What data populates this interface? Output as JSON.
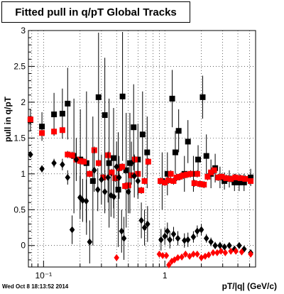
{
  "chart_data": {
    "type": "scatter",
    "title": "Fitted pull in q/pT  Global Tracks",
    "xlabel": "pT/|q| (GeV/c)",
    "ylabel": "pull in q/pT",
    "x_scale": "log",
    "xlim": [
      0.075,
      5.6
    ],
    "ylim": [
      -0.3,
      3.0
    ],
    "x_ticks": [
      {
        "value": 0.1,
        "label": "10⁻¹"
      },
      {
        "value": 1,
        "label": "1"
      }
    ],
    "y_ticks": [
      {
        "value": 0,
        "label": "0"
      },
      {
        "value": 0.5,
        "label": "0.5"
      },
      {
        "value": 1,
        "label": "1"
      },
      {
        "value": 1.5,
        "label": "1.5"
      },
      {
        "value": 2,
        "label": "2"
      },
      {
        "value": 2.5,
        "label": "2.5"
      },
      {
        "value": 3,
        "label": "3"
      }
    ],
    "grid": true,
    "series": [
      {
        "marker": "square",
        "color": "#000000",
        "points": [
          {
            "x": 0.078,
            "y": 1.75,
            "err": 0.15
          },
          {
            "x": 0.097,
            "y": 1.66,
            "err": 0.2
          },
          {
            "x": 0.122,
            "y": 1.83,
            "err": 0.3
          },
          {
            "x": 0.143,
            "y": 1.84,
            "err": 0.35
          },
          {
            "x": 0.158,
            "y": 1.98,
            "err": 0.5
          },
          {
            "x": 0.178,
            "y": 1.25,
            "err": 0.8
          },
          {
            "x": 0.201,
            "y": 1.2,
            "err": 0.7
          },
          {
            "x": 0.226,
            "y": 1.15,
            "err": 1.0
          },
          {
            "x": 0.255,
            "y": 0.9,
            "err": 0.9
          },
          {
            "x": 0.284,
            "y": 2.07,
            "err": 0.9
          },
          {
            "x": 0.32,
            "y": 1.82,
            "err": 0.8
          },
          {
            "x": 0.347,
            "y": 1.15,
            "err": 0.9
          },
          {
            "x": 0.378,
            "y": 1.22,
            "err": 0.7
          },
          {
            "x": 0.413,
            "y": 0.78,
            "err": 0.8
          },
          {
            "x": 0.448,
            "y": 2.08,
            "err": 0.9
          },
          {
            "x": 0.48,
            "y": 1.05,
            "err": 0.8
          },
          {
            "x": 0.515,
            "y": 1.15,
            "err": 0.7
          },
          {
            "x": 0.553,
            "y": 1.65,
            "err": 0.6
          },
          {
            "x": 0.6,
            "y": 1.2,
            "err": 0.5
          },
          {
            "x": 0.655,
            "y": 1.55,
            "err": 0.6
          },
          {
            "x": 0.715,
            "y": 1.3,
            "err": 0.5
          },
          {
            "x": 0.95,
            "y": 0.9,
            "err": 0.4
          },
          {
            "x": 1.05,
            "y": 1.0,
            "err": 0.3
          },
          {
            "x": 1.15,
            "y": 2.05,
            "err": 0.4
          },
          {
            "x": 1.22,
            "y": 1.3,
            "err": 0.3
          },
          {
            "x": 1.3,
            "y": 1.6,
            "err": 0.3
          },
          {
            "x": 1.45,
            "y": 1.0,
            "err": 0.25
          },
          {
            "x": 1.55,
            "y": 1.45,
            "err": 0.3
          },
          {
            "x": 1.72,
            "y": 1.0,
            "err": 0.25
          },
          {
            "x": 1.88,
            "y": 1.2,
            "err": 0.2
          },
          {
            "x": 2.05,
            "y": 2.07,
            "err": 0.3
          },
          {
            "x": 2.2,
            "y": 1.25,
            "err": 0.3
          },
          {
            "x": 2.4,
            "y": 1.0,
            "err": 0.2
          },
          {
            "x": 2.6,
            "y": 1.08,
            "err": 0.2
          },
          {
            "x": 2.85,
            "y": 0.95,
            "err": 0.15
          },
          {
            "x": 3.1,
            "y": 0.9,
            "err": 0.12
          },
          {
            "x": 3.4,
            "y": 0.93,
            "err": 0.12
          },
          {
            "x": 3.75,
            "y": 0.88,
            "err": 0.12
          },
          {
            "x": 4.1,
            "y": 0.88,
            "err": 0.12
          },
          {
            "x": 4.5,
            "y": 0.88,
            "err": 0.12
          },
          {
            "x": 5.1,
            "y": 0.95,
            "err": 0.12
          }
        ]
      },
      {
        "marker": "square",
        "color": "#ff0000",
        "points": [
          {
            "x": 0.078,
            "y": 1.76,
            "err": 0.05
          },
          {
            "x": 0.097,
            "y": 1.57,
            "err": 0.05
          },
          {
            "x": 0.122,
            "y": 1.59,
            "err": 0.05
          },
          {
            "x": 0.143,
            "y": 1.61,
            "err": 0.05
          },
          {
            "x": 0.158,
            "y": 1.27,
            "err": 0.05
          },
          {
            "x": 0.172,
            "y": 1.26,
            "err": 0.05
          },
          {
            "x": 0.186,
            "y": 1.2,
            "err": 0.05
          },
          {
            "x": 0.2,
            "y": 1.18,
            "err": 0.05
          },
          {
            "x": 0.215,
            "y": 1.17,
            "err": 0.05
          },
          {
            "x": 0.24,
            "y": 1.0,
            "err": 0.05
          },
          {
            "x": 0.262,
            "y": 1.33,
            "err": 0.05
          },
          {
            "x": 0.285,
            "y": 1.15,
            "err": 0.05
          },
          {
            "x": 0.31,
            "y": 0.95,
            "err": 0.05
          },
          {
            "x": 0.34,
            "y": 1.26,
            "err": 0.05
          },
          {
            "x": 0.365,
            "y": 1.02,
            "err": 0.05
          },
          {
            "x": 0.39,
            "y": 0.94,
            "err": 0.05
          },
          {
            "x": 0.42,
            "y": 1.08,
            "err": 0.05
          },
          {
            "x": 0.445,
            "y": 1.1,
            "err": 0.05
          },
          {
            "x": 0.47,
            "y": 0.83,
            "err": 0.05
          },
          {
            "x": 0.5,
            "y": 0.84,
            "err": 0.05
          },
          {
            "x": 0.53,
            "y": 0.98,
            "err": 0.05
          },
          {
            "x": 0.565,
            "y": 1.2,
            "err": 0.05
          },
          {
            "x": 0.6,
            "y": 1.0,
            "err": 0.05
          },
          {
            "x": 0.64,
            "y": 0.77,
            "err": 0.05
          },
          {
            "x": 0.68,
            "y": 0.9,
            "err": 0.05
          },
          {
            "x": 0.73,
            "y": 1.17,
            "err": 0.05
          },
          {
            "x": 0.92,
            "y": 0.9,
            "err": 0.05
          },
          {
            "x": 1.0,
            "y": 0.88,
            "err": 0.05
          },
          {
            "x": 1.07,
            "y": 0.91,
            "err": 0.05
          },
          {
            "x": 1.12,
            "y": 1.0,
            "err": 0.05
          },
          {
            "x": 1.18,
            "y": 0.9,
            "err": 0.05
          },
          {
            "x": 1.25,
            "y": 0.95,
            "err": 0.05
          },
          {
            "x": 1.33,
            "y": 0.96,
            "err": 0.05
          },
          {
            "x": 1.42,
            "y": 0.98,
            "err": 0.05
          },
          {
            "x": 1.52,
            "y": 0.99,
            "err": 0.05
          },
          {
            "x": 1.63,
            "y": 1.0,
            "err": 0.05
          },
          {
            "x": 1.75,
            "y": 0.87,
            "err": 0.05
          },
          {
            "x": 1.85,
            "y": 1.0,
            "err": 0.05
          },
          {
            "x": 1.95,
            "y": 0.86,
            "err": 0.05
          },
          {
            "x": 2.1,
            "y": 0.85,
            "err": 0.05
          },
          {
            "x": 2.25,
            "y": 0.96,
            "err": 0.05
          },
          {
            "x": 2.4,
            "y": 1.02,
            "err": 0.05
          },
          {
            "x": 2.55,
            "y": 1.05,
            "err": 0.05
          },
          {
            "x": 2.75,
            "y": 0.95,
            "err": 0.05
          },
          {
            "x": 2.95,
            "y": 0.96,
            "err": 0.05
          },
          {
            "x": 3.2,
            "y": 0.94,
            "err": 0.05
          },
          {
            "x": 3.5,
            "y": 0.93,
            "err": 0.05
          },
          {
            "x": 3.8,
            "y": 0.95,
            "err": 0.05
          },
          {
            "x": 4.2,
            "y": 0.94,
            "err": 0.05
          },
          {
            "x": 4.6,
            "y": 0.93,
            "err": 0.05
          },
          {
            "x": 5.1,
            "y": 0.9,
            "err": 0.05
          }
        ]
      },
      {
        "marker": "diamond",
        "color": "#000000",
        "points": [
          {
            "x": 0.078,
            "y": 1.27,
            "err": 0.04
          },
          {
            "x": 0.097,
            "y": 1.07,
            "err": 0.05
          },
          {
            "x": 0.122,
            "y": 1.15,
            "err": 0.06
          },
          {
            "x": 0.143,
            "y": 1.13,
            "err": 0.08
          },
          {
            "x": 0.158,
            "y": 0.95,
            "err": 0.1
          },
          {
            "x": 0.172,
            "y": 0.22,
            "err": 0.2
          },
          {
            "x": 0.186,
            "y": 1.2,
            "err": 0.3
          },
          {
            "x": 0.2,
            "y": 0.67,
            "err": 0.3
          },
          {
            "x": 0.21,
            "y": 0.63,
            "err": 0.3
          },
          {
            "x": 0.225,
            "y": 0.62,
            "err": 0.3
          },
          {
            "x": 0.24,
            "y": 0.05,
            "err": 0.3
          },
          {
            "x": 0.262,
            "y": 1.05,
            "err": 0.3
          },
          {
            "x": 0.28,
            "y": 0.78,
            "err": 0.3
          },
          {
            "x": 0.3,
            "y": 0.92,
            "err": 0.35
          },
          {
            "x": 0.32,
            "y": 0.75,
            "err": 0.3
          },
          {
            "x": 0.34,
            "y": 0.95,
            "err": 0.35
          },
          {
            "x": 0.36,
            "y": 0.7,
            "err": 0.3
          },
          {
            "x": 0.38,
            "y": 0.68,
            "err": 0.3
          },
          {
            "x": 0.4,
            "y": 1.1,
            "err": 0.35
          },
          {
            "x": 0.42,
            "y": 0.95,
            "err": 0.3
          },
          {
            "x": 0.44,
            "y": 0.2,
            "err": 0.3
          },
          {
            "x": 0.46,
            "y": 0.1,
            "err": 0.3
          },
          {
            "x": 0.5,
            "y": 0.75,
            "err": 0.3
          },
          {
            "x": 0.53,
            "y": 1.15,
            "err": 0.3
          },
          {
            "x": 0.56,
            "y": 0.97,
            "err": 0.3
          },
          {
            "x": 0.6,
            "y": 0.9,
            "err": 0.25
          },
          {
            "x": 0.64,
            "y": 0.35,
            "err": 0.25
          },
          {
            "x": 0.68,
            "y": 0.25,
            "err": 0.25
          },
          {
            "x": 0.72,
            "y": 0.3,
            "err": 0.25
          },
          {
            "x": 0.93,
            "y": 0.08,
            "err": 0.15
          },
          {
            "x": 1.0,
            "y": 0.13,
            "err": 0.12
          },
          {
            "x": 1.05,
            "y": 0.2,
            "err": 0.12
          },
          {
            "x": 1.1,
            "y": 0.08,
            "err": 0.12
          },
          {
            "x": 1.18,
            "y": 0.16,
            "err": 0.1
          },
          {
            "x": 1.28,
            "y": 0.1,
            "err": 0.1
          },
          {
            "x": 1.45,
            "y": 0.07,
            "err": 0.1
          },
          {
            "x": 1.55,
            "y": 0.08,
            "err": 0.1
          },
          {
            "x": 1.72,
            "y": 0.12,
            "err": 0.08
          },
          {
            "x": 1.85,
            "y": 0.2,
            "err": 0.08
          },
          {
            "x": 2.0,
            "y": 0.22,
            "err": 0.08
          },
          {
            "x": 2.2,
            "y": 0.1,
            "err": 0.06
          },
          {
            "x": 2.4,
            "y": 0.05,
            "err": 0.06
          },
          {
            "x": 2.6,
            "y": 0.0,
            "err": 0.05
          },
          {
            "x": 2.85,
            "y": 0.0,
            "err": 0.05
          },
          {
            "x": 3.1,
            "y": -0.02,
            "err": 0.04
          },
          {
            "x": 3.4,
            "y": 0.0,
            "err": 0.04
          },
          {
            "x": 3.75,
            "y": -0.05,
            "err": 0.04
          },
          {
            "x": 4.1,
            "y": 0.0,
            "err": 0.04
          },
          {
            "x": 4.5,
            "y": -0.05,
            "err": 0.04
          },
          {
            "x": 5.1,
            "y": -0.1,
            "err": 0.04
          }
        ]
      },
      {
        "marker": "diamond",
        "color": "#ff0000",
        "points": [
          {
            "x": 0.4,
            "y": -0.17,
            "err": 0.04
          },
          {
            "x": 0.9,
            "y": -0.12,
            "err": 0.04
          },
          {
            "x": 0.96,
            "y": -0.14,
            "err": 0.04
          },
          {
            "x": 1.03,
            "y": -0.14,
            "err": 0.04
          },
          {
            "x": 1.08,
            "y": -0.27,
            "err": 0.04
          },
          {
            "x": 1.14,
            "y": -0.22,
            "err": 0.04
          },
          {
            "x": 1.2,
            "y": -0.2,
            "err": 0.04
          },
          {
            "x": 1.28,
            "y": -0.17,
            "err": 0.04
          },
          {
            "x": 1.38,
            "y": -0.16,
            "err": 0.04
          },
          {
            "x": 1.48,
            "y": -0.12,
            "err": 0.04
          },
          {
            "x": 1.6,
            "y": -0.15,
            "err": 0.04
          },
          {
            "x": 1.72,
            "y": -0.12,
            "err": 0.04
          },
          {
            "x": 1.85,
            "y": -0.12,
            "err": 0.04
          },
          {
            "x": 2.0,
            "y": -0.17,
            "err": 0.04
          },
          {
            "x": 2.15,
            "y": -0.15,
            "err": 0.04
          },
          {
            "x": 2.3,
            "y": -0.13,
            "err": 0.04
          },
          {
            "x": 2.5,
            "y": -0.1,
            "err": 0.04
          },
          {
            "x": 2.7,
            "y": -0.1,
            "err": 0.04
          },
          {
            "x": 2.9,
            "y": -0.08,
            "err": 0.04
          },
          {
            "x": 3.15,
            "y": -0.1,
            "err": 0.04
          },
          {
            "x": 3.5,
            "y": -0.08,
            "err": 0.04
          },
          {
            "x": 3.85,
            "y": -0.08,
            "err": 0.04
          },
          {
            "x": 4.3,
            "y": -0.09,
            "err": 0.04
          },
          {
            "x": 5.1,
            "y": -0.12,
            "err": 0.04
          }
        ]
      }
    ]
  },
  "footer": {
    "timestamp": "Wed Oct  8 18:13:52 2014"
  }
}
